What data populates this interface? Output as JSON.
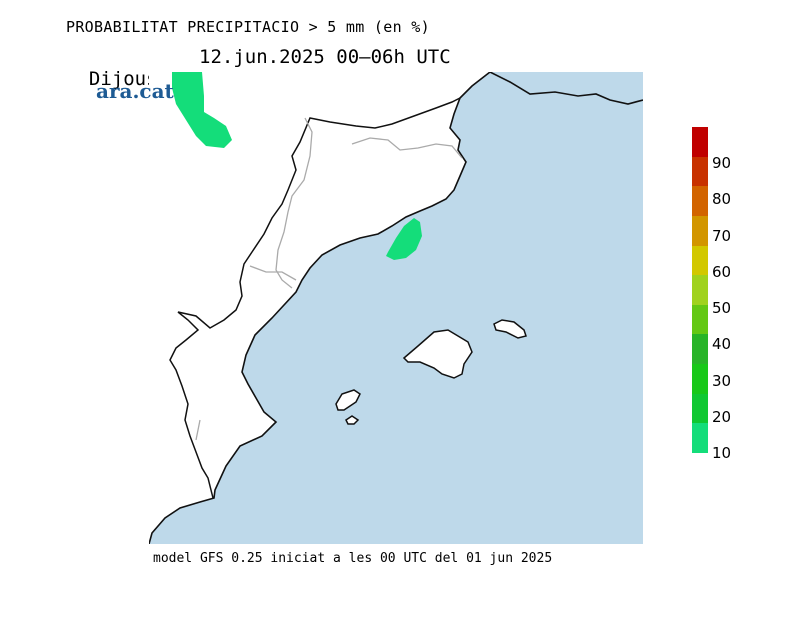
{
  "title": "PROBABILITAT PRECIPITACIO > 5 mm (en %)",
  "subtitle": {
    "day": "Dijous",
    "date_range": "12.jun.2025 00–06h UTC"
  },
  "brand": "ara.cat",
  "footer": "model GFS 0.25 iniciat a les 00 UTC del 01 jun 2025",
  "colors": {
    "sea": "#bed9ea",
    "land": "#ffffff",
    "coast": "#111111",
    "border": "#aaaaaa",
    "precip": "#14dd7a"
  },
  "legend": {
    "labels": [
      "10",
      "20",
      "30",
      "40",
      "50",
      "60",
      "70",
      "80",
      "90"
    ],
    "colors": [
      "#14dd7a",
      "#10c832",
      "#18c818",
      "#28b428",
      "#64c814",
      "#a0d21e",
      "#d2c800",
      "#d29600",
      "#d26400",
      "#c83200",
      "#c00000"
    ]
  }
}
